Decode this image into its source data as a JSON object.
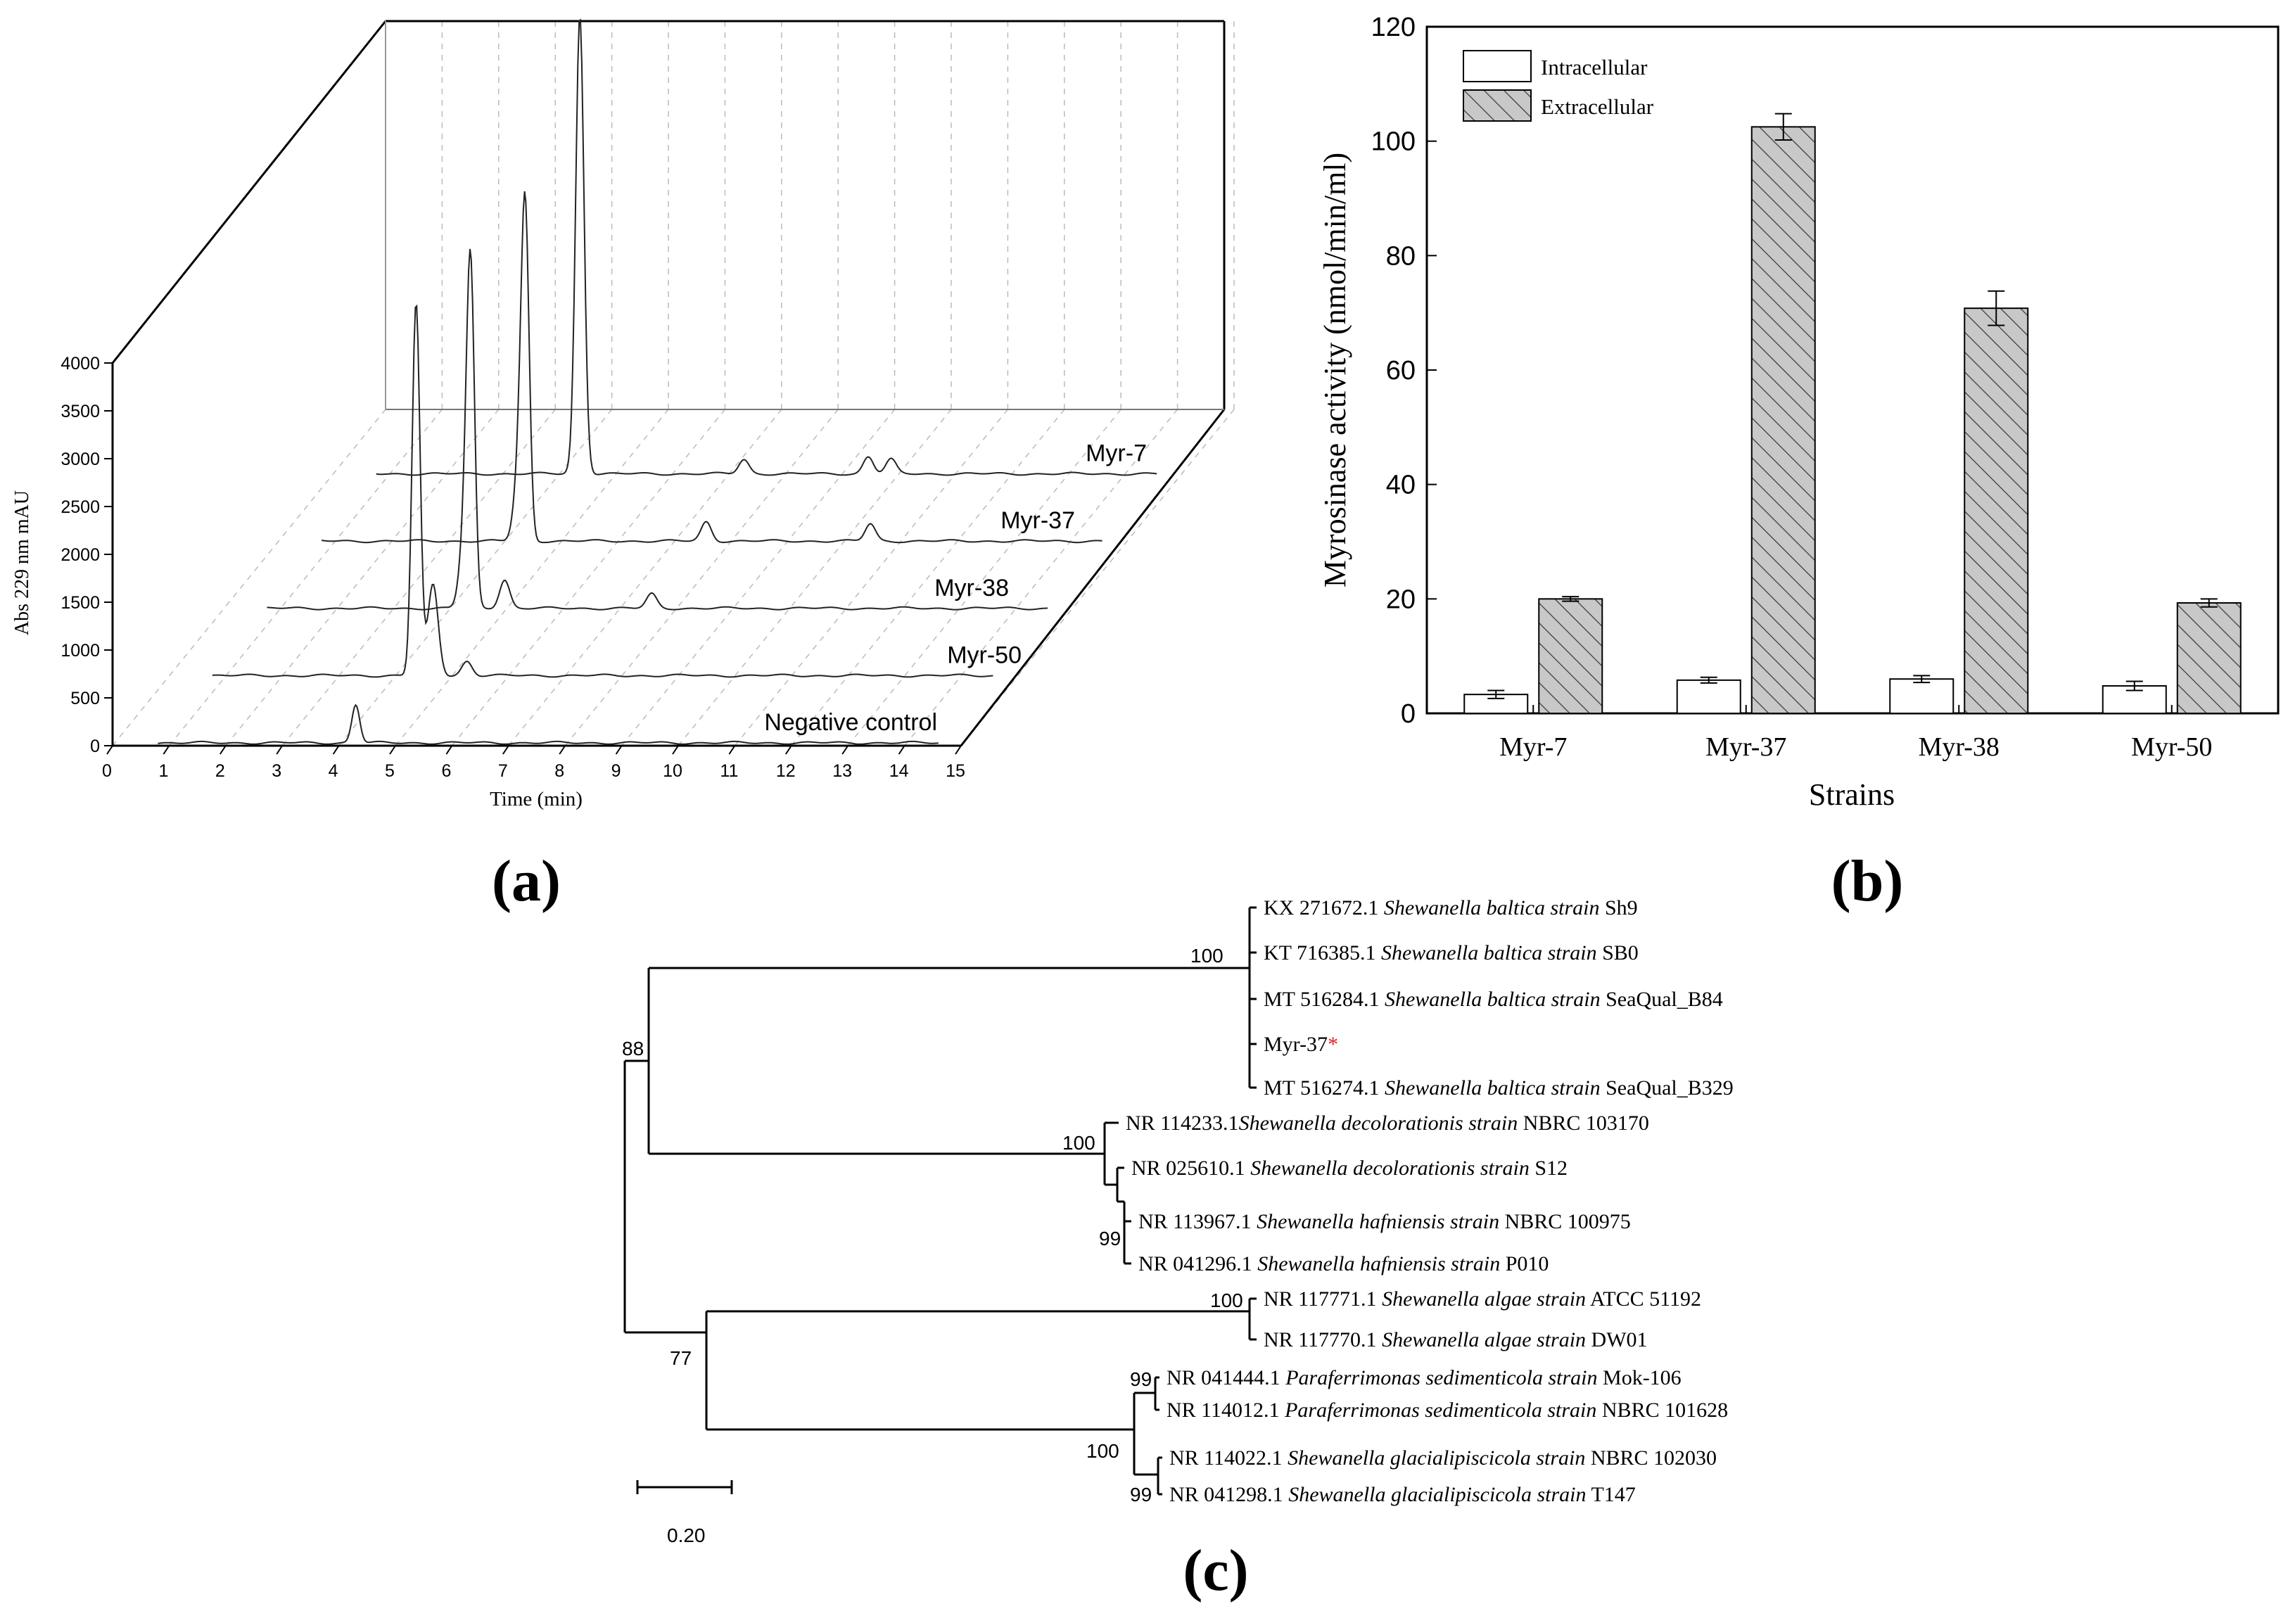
{
  "panels": {
    "a": "(a)",
    "b": "(b)",
    "c": "(c)"
  },
  "chart_data": [
    {
      "type": "line",
      "subtype": "3d-stacked-chromatogram",
      "xlabel": "Time (min)",
      "ylabel": "Abs 229 nm mAU",
      "xlim": [
        0,
        15
      ],
      "ylim": [
        0,
        4000
      ],
      "x_ticks": [
        "0",
        "1",
        "2",
        "3",
        "4",
        "5",
        "6",
        "7",
        "8",
        "9",
        "10",
        "11",
        "12",
        "13",
        "14",
        "15"
      ],
      "y_ticks": [
        "0",
        "500",
        "1000",
        "1500",
        "2000",
        "2500",
        "3000",
        "3500",
        "4000"
      ],
      "series": [
        {
          "name": "Negative control",
          "peak_time": 4.3,
          "peak_height": 400,
          "secondary_peaks": []
        },
        {
          "name": "Myr-50",
          "peak_time": 4.4,
          "peak_height": 3900,
          "secondary_peaks": [
            [
              4.7,
              950
            ],
            [
              5.3,
              150
            ]
          ]
        },
        {
          "name": "Myr-38",
          "peak_time": 4.4,
          "peak_height": 3300,
          "secondary_peaks": [
            [
              4.3,
              800
            ],
            [
              5.0,
              300
            ],
            [
              7.6,
              150
            ]
          ]
        },
        {
          "name": "Myr-37",
          "peak_time": 4.4,
          "peak_height": 3200,
          "secondary_peaks": [
            [
              4.3,
              800
            ],
            [
              7.6,
              200
            ],
            [
              10.5,
              180
            ]
          ]
        },
        {
          "name": "Myr-7",
          "peak_time": 4.4,
          "peak_height": 3900,
          "secondary_peaks": [
            [
              4.4,
              900
            ],
            [
              7.3,
              150
            ],
            [
              9.5,
              180
            ],
            [
              9.9,
              150
            ]
          ]
        }
      ],
      "grid": true
    },
    {
      "type": "bar",
      "categories": [
        "Myr-7",
        "Myr-37",
        "Myr-38",
        "Myr-50"
      ],
      "series": [
        {
          "name": "Intracellular",
          "values": [
            3.3,
            5.8,
            6.0,
            4.8
          ],
          "errors": [
            0.7,
            0.5,
            0.6,
            0.8
          ],
          "fill": "#ffffff"
        },
        {
          "name": "Extracellular",
          "values": [
            20.0,
            102.5,
            70.8,
            19.3
          ],
          "errors": [
            0.4,
            2.3,
            3.0,
            0.7
          ],
          "fill": "#c8c8c8"
        }
      ],
      "xlabel": "Strains",
      "ylabel": "Myrosinase activity (nmol/min/ml)",
      "ylim": [
        0,
        120
      ],
      "y_ticks": [
        "0",
        "20",
        "40",
        "60",
        "80",
        "100",
        "120"
      ],
      "legend_position": "top-left"
    },
    {
      "type": "phylogenetic-tree",
      "scale_bar": "0.20",
      "leaves": [
        {
          "acc": "KX 271672.1",
          "species": "Shewanella baltica strain",
          "strain": "Sh9"
        },
        {
          "acc": "KT 716385.1",
          "species": "Shewanella baltica strain",
          "strain": "SB0"
        },
        {
          "acc": "MT 516284.1",
          "species": "Shewanella baltica strain",
          "strain": "SeaQual_B84"
        },
        {
          "acc": "Myr-37",
          "species": "",
          "strain": "",
          "marker": "*"
        },
        {
          "acc": "MT 516274.1",
          "species": "Shewanella baltica strain",
          "strain": "SeaQual_B329"
        },
        {
          "acc": "NR 114233.1",
          "species": "Shewanella decolorationis strain",
          "strain": "NBRC 103170"
        },
        {
          "acc": "NR 025610.1",
          "species": "Shewanella decolorationis strain",
          "strain": "S12"
        },
        {
          "acc": "NR 113967.1",
          "species": "Shewanella hafniensis strain",
          "strain": "NBRC 100975"
        },
        {
          "acc": "NR 041296.1",
          "species": "Shewanella hafniensis strain",
          "strain": "P010"
        },
        {
          "acc": "NR 117771.1",
          "species": "Shewanella algae strain",
          "strain": "ATCC 51192"
        },
        {
          "acc": "NR 117770.1",
          "species": "Shewanella algae strain",
          "strain": "DW01"
        },
        {
          "acc": "NR 041444.1",
          "species": "Paraferrimonas sedimenticola strain",
          "strain": "Mok-106"
        },
        {
          "acc": "NR 114012.1",
          "species": "Paraferrimonas sedimenticola strain",
          "strain": "NBRC 101628"
        },
        {
          "acc": "NR 114022.1",
          "species": "Shewanella glacialipiscicola strain",
          "strain": "NBRC 102030"
        },
        {
          "acc": "NR 041298.1",
          "species": "Shewanella glacialipiscicola strain",
          "strain": "T147"
        }
      ],
      "bootstrap": [
        "100",
        "88",
        "100",
        "99",
        "100",
        "77",
        "99",
        "100",
        "99"
      ]
    }
  ]
}
